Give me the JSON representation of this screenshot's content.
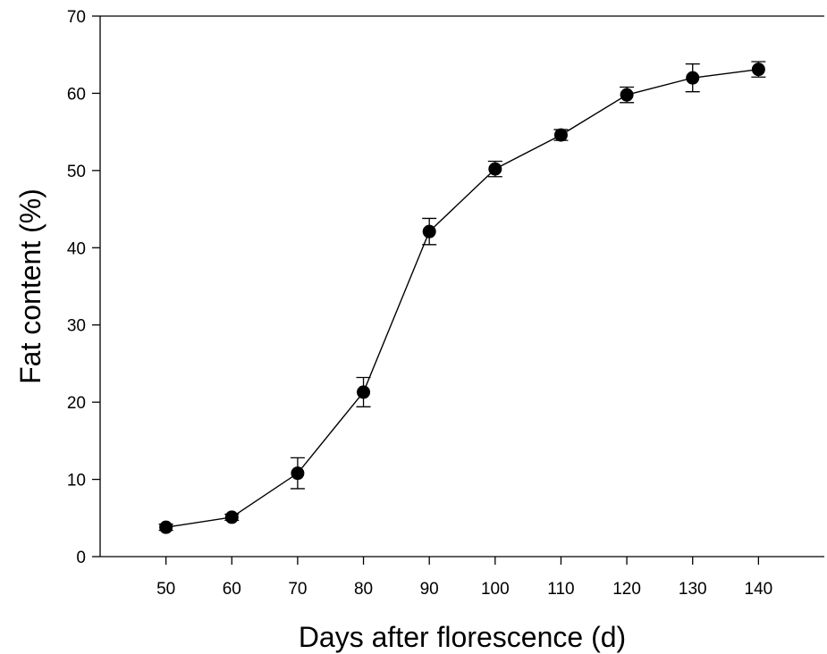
{
  "chart_data": {
    "type": "line",
    "title": "",
    "xlabel": "Days after florescence (d)",
    "ylabel": "Fat content (%)",
    "xlim": [
      40,
      150
    ],
    "ylim": [
      0,
      70
    ],
    "x_ticks": [
      50,
      60,
      70,
      80,
      90,
      100,
      110,
      120,
      130,
      140
    ],
    "y_ticks": [
      0,
      10,
      20,
      30,
      40,
      50,
      60,
      70
    ],
    "grid": false,
    "legend": "none",
    "series": [
      {
        "x": [
          50,
          60,
          70,
          80,
          90,
          100,
          110,
          120,
          130,
          140
        ],
        "y": [
          3.8,
          5.1,
          10.8,
          21.3,
          42.1,
          50.2,
          54.6,
          59.8,
          62.0,
          63.1
        ],
        "error": [
          0.4,
          0.4,
          2.0,
          1.9,
          1.7,
          1.0,
          0.7,
          1.0,
          1.8,
          1.0
        ],
        "color": "#000000",
        "marker": "circle"
      }
    ]
  }
}
